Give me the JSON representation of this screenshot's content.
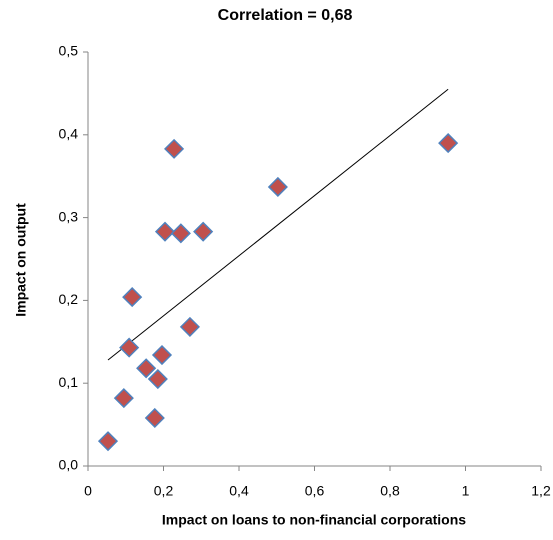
{
  "chart_data": {
    "type": "scatter",
    "title": "Correlation = 0,68",
    "x_label": "Impact on loans to non-financial corporations",
    "y_label": "Impact on output",
    "series": [
      {
        "color": "#c0504d",
        "edge_color": "#4f81bd",
        "x": [
          0.053,
          0.095,
          0.109,
          0.117,
          0.154,
          0.177,
          0.185,
          0.196,
          0.204,
          0.228,
          0.246,
          0.27,
          0.305,
          0.503,
          0.954
        ],
        "values": [
          0.03,
          0.082,
          0.143,
          0.204,
          0.118,
          0.058,
          0.105,
          0.134,
          0.283,
          0.383,
          0.281,
          0.168,
          0.283,
          0.337,
          0.39
        ]
      }
    ],
    "trendline": {
      "color": "#000000",
      "x": [
        0.053,
        0.954
      ],
      "values": [
        0.128,
        0.455
      ]
    },
    "xlim": [
      0,
      1.2
    ],
    "ylim": [
      0,
      0.5
    ],
    "xticks": [
      0,
      {
        "value": 0.2,
        "label": "0,2"
      },
      {
        "value": 0.4,
        "label": "0,4"
      },
      {
        "value": 0.6,
        "label": "0,6"
      },
      {
        "value": 0.8,
        "label": "0,8"
      },
      1,
      {
        "value": 1.2,
        "label": "1,2"
      }
    ],
    "yticks": [
      {
        "value": 0,
        "label": "0,0"
      },
      {
        "value": 0.1,
        "label": "0,1"
      },
      {
        "value": 0.2,
        "label": "0,2"
      },
      {
        "value": 0.3,
        "label": "0,3"
      },
      {
        "value": 0.4,
        "label": "0,4"
      },
      {
        "value": 0.5,
        "label": "0,5"
      }
    ],
    "grid": false
  }
}
